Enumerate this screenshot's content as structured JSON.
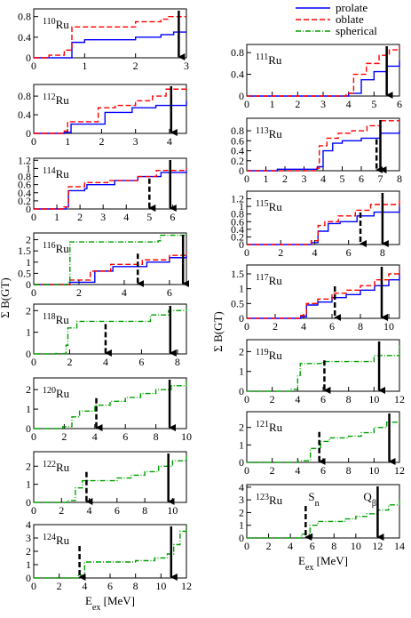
{
  "chart_data": [
    {
      "type": "step",
      "mass": "110",
      "symbol": "Ru",
      "xlim": [
        0,
        3
      ],
      "xticks": [
        0,
        1,
        2,
        3
      ],
      "ylim": [
        0,
        0.95
      ],
      "yticks": [
        0,
        0.4,
        0.8
      ],
      "qbeta": 2.85,
      "series": [
        {
          "name": "prolate",
          "color": "#0000ff",
          "x": [
            0,
            0.75,
            1.0,
            2.0,
            2.5,
            2.75,
            3
          ],
          "values": [
            0,
            0.3,
            0.35,
            0.4,
            0.45,
            0.5,
            0.5
          ]
        },
        {
          "name": "oblate",
          "color": "#ff0000",
          "x": [
            0,
            0.3,
            0.6,
            0.75,
            2.0,
            2.5,
            2.65,
            3
          ],
          "values": [
            0,
            0.05,
            0.15,
            0.6,
            0.7,
            0.75,
            0.8,
            0.8
          ]
        }
      ]
    },
    {
      "type": "step",
      "mass": "112",
      "symbol": "Ru",
      "xlim": [
        0,
        4.5
      ],
      "xticks": [
        0,
        1,
        2,
        3,
        4
      ],
      "ylim": [
        0,
        1.05
      ],
      "yticks": [
        0,
        0.4,
        0.8
      ],
      "qbeta": 4.05,
      "series": [
        {
          "name": "prolate",
          "color": "#0000ff",
          "x": [
            0,
            0.9,
            1.1,
            2.1,
            2.9,
            3.6,
            4.5
          ],
          "values": [
            0,
            0.02,
            0.2,
            0.45,
            0.55,
            0.6,
            0.7
          ]
        },
        {
          "name": "oblate",
          "color": "#ff0000",
          "x": [
            0,
            0.9,
            1.0,
            1.9,
            2.4,
            3.0,
            3.5,
            3.9,
            4.5
          ],
          "values": [
            0,
            0.05,
            0.25,
            0.55,
            0.6,
            0.7,
            0.8,
            0.95,
            1.0
          ]
        }
      ]
    },
    {
      "type": "step",
      "mass": "114",
      "symbol": "Ru",
      "xlim": [
        0,
        6.6
      ],
      "xticks": [
        0,
        1,
        2,
        3,
        4,
        5,
        6
      ],
      "ylim": [
        0,
        1.25
      ],
      "yticks": [
        0,
        0.2,
        0.4,
        0.6,
        0.8,
        1,
        1.2
      ],
      "sn": 5.0,
      "qbeta": 5.9,
      "series": [
        {
          "name": "prolate",
          "color": "#0000ff",
          "x": [
            0,
            1.4,
            1.5,
            2.2,
            2.3,
            3.5,
            4.5,
            5.5,
            6.6
          ],
          "values": [
            0,
            0.05,
            0.45,
            0.5,
            0.6,
            0.7,
            0.8,
            0.9,
            0.95
          ]
        },
        {
          "name": "oblate",
          "color": "#ff0000",
          "x": [
            0,
            1.3,
            1.5,
            2.2,
            3.2,
            4.5,
            5.3,
            6.6
          ],
          "values": [
            0,
            0.05,
            0.55,
            0.65,
            0.7,
            0.8,
            0.95,
            1.0
          ]
        }
      ]
    },
    {
      "type": "step",
      "mass": "116",
      "symbol": "Ru",
      "xlim": [
        0,
        6.75
      ],
      "xticks": [
        0,
        2,
        4,
        6
      ],
      "ylim": [
        0,
        2.3
      ],
      "yticks": [
        0,
        0.5,
        1,
        1.5,
        2
      ],
      "sn": 4.6,
      "qbeta": 6.6,
      "ylabel": "Σ B(GT)",
      "series": [
        {
          "name": "prolate",
          "color": "#0000ff",
          "x": [
            0,
            1.6,
            2.7,
            3.5,
            5,
            6,
            6.75
          ],
          "values": [
            0,
            0.1,
            0.6,
            0.8,
            1.0,
            1.2,
            1.3
          ]
        },
        {
          "name": "oblate",
          "color": "#ff0000",
          "x": [
            0,
            1.6,
            2.5,
            3.4,
            4.8,
            6,
            6.75
          ],
          "values": [
            0,
            0.2,
            0.6,
            0.9,
            1.1,
            1.3,
            1.45
          ]
        },
        {
          "name": "spherical",
          "color": "#00a000",
          "x": [
            0,
            1.5,
            1.6,
            4.5,
            5.5,
            5.6,
            6.75
          ],
          "values": [
            0,
            0.1,
            1.9,
            1.9,
            1.95,
            2.2,
            2.3
          ]
        }
      ]
    },
    {
      "type": "step",
      "mass": "118",
      "symbol": "Ru",
      "xlim": [
        0,
        8.5
      ],
      "xticks": [
        0,
        2,
        4,
        6,
        8
      ],
      "ylim": [
        0,
        2.3
      ],
      "yticks": [
        0,
        1,
        2
      ],
      "sn": 4.0,
      "qbeta": 7.6,
      "series": [
        {
          "name": "spherical",
          "color": "#00a000",
          "x": [
            0,
            1.2,
            1.8,
            1.9,
            2.4,
            5.5,
            6.5,
            7.5,
            8.5
          ],
          "values": [
            0,
            0.02,
            0.4,
            1.2,
            1.5,
            1.5,
            1.8,
            2.0,
            2.1
          ]
        }
      ]
    },
    {
      "type": "step",
      "mass": "120",
      "symbol": "Ru",
      "xlim": [
        0,
        10
      ],
      "xticks": [
        0,
        2,
        4,
        6,
        8,
        10
      ],
      "ylim": [
        0,
        2.6
      ],
      "yticks": [
        0,
        1,
        2
      ],
      "sn": 4.1,
      "qbeta": 8.9,
      "series": [
        {
          "name": "spherical",
          "color": "#00a000",
          "x": [
            0,
            1.9,
            2.5,
            3,
            4,
            5,
            6,
            7,
            8,
            9,
            10
          ],
          "values": [
            0,
            0.1,
            0.6,
            0.9,
            1.2,
            1.4,
            1.6,
            1.8,
            2.0,
            2.2,
            2.4
          ]
        }
      ]
    },
    {
      "type": "step",
      "mass": "122",
      "symbol": "Ru",
      "xlim": [
        0,
        11
      ],
      "xticks": [
        0,
        2,
        4,
        6,
        8,
        10
      ],
      "ylim": [
        0,
        2.8
      ],
      "yticks": [
        0,
        1,
        2
      ],
      "sn": 3.8,
      "qbeta": 9.7,
      "series": [
        {
          "name": "spherical",
          "color": "#00a000",
          "x": [
            0,
            2.4,
            3.0,
            3.5,
            5,
            6,
            7,
            8,
            9,
            10,
            11
          ],
          "values": [
            0,
            0.1,
            0.8,
            1.2,
            1.2,
            1.35,
            1.5,
            1.7,
            2.0,
            2.3,
            2.6
          ]
        }
      ]
    },
    {
      "type": "step",
      "mass": "124",
      "symbol": "Ru",
      "xlim": [
        0,
        12
      ],
      "xticks": [
        0,
        2,
        4,
        6,
        8,
        10,
        12
      ],
      "ylim": [
        0,
        4
      ],
      "yticks": [
        0,
        1,
        2,
        3,
        4
      ],
      "sn": 3.6,
      "qbeta": 10.8,
      "xlabel": {
        "base": "E",
        "sub": "ex",
        "rest": " [MeV]"
      },
      "series": [
        {
          "name": "spherical",
          "color": "#00a000",
          "x": [
            0,
            3.5,
            4,
            6,
            8,
            9.5,
            10.5,
            11,
            11.5,
            12
          ],
          "values": [
            0,
            0.2,
            1.2,
            1.2,
            1.3,
            1.5,
            1.8,
            2.5,
            3.5,
            4
          ]
        }
      ]
    },
    {
      "type": "step",
      "mass": "111",
      "symbol": "Ru",
      "xlim": [
        0,
        6
      ],
      "xticks": [
        0,
        1,
        2,
        3,
        4,
        5,
        6
      ],
      "ylim": [
        0,
        0.95
      ],
      "yticks": [
        0,
        0.4,
        0.8
      ],
      "qbeta": 5.5,
      "series": [
        {
          "name": "prolate",
          "color": "#0000ff",
          "x": [
            0,
            4,
            4.5,
            5,
            5.5,
            6
          ],
          "values": [
            0,
            0.05,
            0.3,
            0.45,
            0.55,
            0.65
          ]
        },
        {
          "name": "oblate",
          "color": "#ff0000",
          "x": [
            0,
            3.9,
            4.2,
            4.7,
            5.2,
            5.6,
            6
          ],
          "values": [
            0,
            0.05,
            0.4,
            0.6,
            0.75,
            0.85,
            0.9
          ]
        }
      ]
    },
    {
      "type": "step",
      "mass": "113",
      "symbol": "Ru",
      "xlim": [
        0,
        8
      ],
      "xticks": [
        0,
        1,
        2,
        3,
        4,
        5,
        6,
        7,
        8
      ],
      "ylim": [
        0,
        1.05
      ],
      "yticks": [
        0,
        0.2,
        0.4,
        0.6,
        0.8
      ],
      "sn": 6.8,
      "qbeta": 7.0,
      "series": [
        {
          "name": "prolate",
          "color": "#0000ff",
          "x": [
            0,
            1.6,
            3.7,
            4,
            4.5,
            5,
            6,
            7,
            8
          ],
          "values": [
            0,
            0.03,
            0.08,
            0.4,
            0.55,
            0.6,
            0.65,
            0.75,
            0.8
          ]
        },
        {
          "name": "oblate",
          "color": "#ff0000",
          "x": [
            0,
            3.6,
            3.8,
            4.2,
            4.8,
            5.5,
            6.3,
            7,
            8
          ],
          "values": [
            0,
            0.05,
            0.5,
            0.65,
            0.75,
            0.8,
            0.9,
            1.0,
            1.0
          ]
        }
      ]
    },
    {
      "type": "step",
      "mass": "115",
      "symbol": "Ru",
      "xlim": [
        0,
        9
      ],
      "xticks": [
        0,
        2,
        4,
        6,
        8
      ],
      "ylim": [
        0,
        1.4
      ],
      "yticks": [
        0,
        0.2,
        0.4,
        0.6,
        0.8,
        1,
        1.2
      ],
      "sn": 6.7,
      "qbeta": 8.0,
      "series": [
        {
          "name": "prolate",
          "color": "#0000ff",
          "x": [
            0,
            3.8,
            4.2,
            4.8,
            5.5,
            6.5,
            7.5,
            9
          ],
          "values": [
            0,
            0.05,
            0.35,
            0.55,
            0.6,
            0.75,
            0.85,
            1.0
          ]
        },
        {
          "name": "oblate",
          "color": "#ff0000",
          "x": [
            0,
            3.8,
            4.2,
            4.6,
            5.4,
            6.4,
            7.3,
            9
          ],
          "values": [
            0,
            0.1,
            0.5,
            0.6,
            0.75,
            0.9,
            1.05,
            1.2
          ]
        }
      ]
    },
    {
      "type": "step",
      "mass": "117",
      "symbol": "Ru",
      "xlim": [
        0,
        10.75
      ],
      "xticks": [
        0,
        2,
        4,
        6,
        8,
        10
      ],
      "ylim": [
        0,
        1.8
      ],
      "yticks": [
        0,
        0.5,
        1,
        1.5
      ],
      "sn": 6.2,
      "qbeta": 9.5,
      "ylabel": "Σ B(GT)",
      "series": [
        {
          "name": "prolate",
          "color": "#0000ff",
          "x": [
            0,
            3.8,
            4.2,
            5,
            6,
            7,
            8,
            9,
            10,
            10.75
          ],
          "values": [
            0,
            0.05,
            0.45,
            0.55,
            0.7,
            0.8,
            0.95,
            1.1,
            1.3,
            1.5
          ]
        },
        {
          "name": "oblate",
          "color": "#ff0000",
          "x": [
            0,
            3.8,
            4.2,
            5,
            6,
            7,
            8,
            9,
            10,
            10.75
          ],
          "values": [
            0,
            0.1,
            0.5,
            0.65,
            0.85,
            0.95,
            1.1,
            1.3,
            1.5,
            1.65
          ]
        }
      ]
    },
    {
      "type": "step",
      "mass": "119",
      "symbol": "Ru",
      "xlim": [
        0,
        12
      ],
      "xticks": [
        0,
        2,
        4,
        6,
        8,
        10,
        12
      ],
      "ylim": [
        0,
        2.6
      ],
      "yticks": [
        0,
        1,
        2
      ],
      "sn": 6.1,
      "qbeta": 10.4,
      "series": [
        {
          "name": "spherical",
          "color": "#00a000",
          "x": [
            0,
            3.5,
            4,
            4.2,
            5,
            6,
            8,
            10,
            12
          ],
          "values": [
            0,
            0.1,
            0.8,
            1.4,
            1.4,
            1.5,
            1.5,
            1.8,
            2.3
          ]
        }
      ]
    },
    {
      "type": "step",
      "mass": "121",
      "symbol": "Ru",
      "xlim": [
        0,
        12
      ],
      "xticks": [
        0,
        2,
        4,
        6,
        8,
        10,
        12
      ],
      "ylim": [
        0,
        2.9
      ],
      "yticks": [
        0,
        1,
        2
      ],
      "sn": 5.7,
      "qbeta": 11.2,
      "series": [
        {
          "name": "spherical",
          "color": "#00a000",
          "x": [
            0,
            4,
            5,
            5.8,
            6.5,
            8,
            9,
            10,
            11,
            12
          ],
          "values": [
            0,
            0.1,
            0.8,
            1.2,
            1.4,
            1.5,
            1.7,
            2.0,
            2.3,
            2.5
          ]
        }
      ]
    },
    {
      "type": "step",
      "mass": "123",
      "symbol": "Ru",
      "xlim": [
        0,
        14
      ],
      "xticks": [
        0,
        2,
        4,
        6,
        8,
        10,
        12,
        14
      ],
      "ylim": [
        0,
        4.2
      ],
      "yticks": [
        0,
        1,
        2,
        3,
        4
      ],
      "sn": 5.4,
      "qbeta": 12.0,
      "sn_label": {
        "base": "S",
        "sub": "n"
      },
      "qbeta_label": {
        "base": "Q",
        "sub": "β"
      },
      "xlabel": {
        "base": "E",
        "sub": "ex",
        "rest": " [MeV]"
      },
      "series": [
        {
          "name": "spherical",
          "color": "#00a000",
          "x": [
            0,
            5,
            5.8,
            6.5,
            8,
            9,
            10,
            11,
            12,
            13,
            14
          ],
          "values": [
            0,
            0.3,
            1.0,
            1.3,
            1.3,
            1.5,
            1.7,
            1.9,
            2.2,
            2.6,
            3.1
          ]
        }
      ]
    }
  ]
}
